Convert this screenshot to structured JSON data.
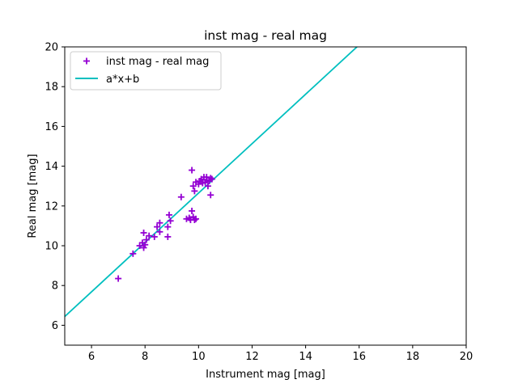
{
  "chart_data": {
    "type": "scatter",
    "title": "inst mag - real mag",
    "xlabel": "Instrument mag [mag]",
    "ylabel": "Real mag [mag]",
    "xlim": [
      5,
      20
    ],
    "ylim": [
      5,
      20
    ],
    "xticks": [
      6,
      8,
      10,
      12,
      14,
      16,
      18,
      20
    ],
    "yticks": [
      6,
      8,
      10,
      12,
      14,
      16,
      18,
      20
    ],
    "grid": false,
    "legend_position": "top-left",
    "series": [
      {
        "name": "inst mag - real mag",
        "kind": "scatter",
        "marker": "plus",
        "color": "#9400d3",
        "points": [
          [
            7.0,
            8.35
          ],
          [
            7.55,
            9.6
          ],
          [
            7.8,
            10.0
          ],
          [
            7.9,
            10.15
          ],
          [
            7.95,
            9.9
          ],
          [
            8.0,
            10.05
          ],
          [
            7.95,
            10.65
          ],
          [
            8.05,
            10.3
          ],
          [
            8.15,
            10.5
          ],
          [
            8.35,
            10.45
          ],
          [
            8.45,
            10.95
          ],
          [
            8.55,
            10.7
          ],
          [
            8.55,
            11.15
          ],
          [
            8.85,
            10.45
          ],
          [
            8.85,
            10.95
          ],
          [
            8.95,
            11.25
          ],
          [
            8.9,
            11.55
          ],
          [
            9.35,
            12.45
          ],
          [
            9.55,
            11.35
          ],
          [
            9.65,
            11.4
          ],
          [
            9.7,
            11.3
          ],
          [
            9.75,
            11.75
          ],
          [
            9.8,
            11.45
          ],
          [
            9.85,
            11.3
          ],
          [
            9.9,
            11.35
          ],
          [
            9.75,
            13.8
          ],
          [
            9.8,
            13.0
          ],
          [
            9.85,
            12.75
          ],
          [
            9.9,
            13.2
          ],
          [
            10.0,
            13.1
          ],
          [
            10.05,
            13.25
          ],
          [
            10.1,
            13.35
          ],
          [
            10.15,
            13.15
          ],
          [
            10.2,
            13.45
          ],
          [
            10.25,
            13.2
          ],
          [
            10.3,
            13.3
          ],
          [
            10.35,
            13.0
          ],
          [
            10.4,
            13.25
          ],
          [
            10.45,
            12.55
          ],
          [
            10.45,
            13.4
          ],
          [
            10.5,
            13.35
          ],
          [
            10.3,
            13.45
          ]
        ]
      },
      {
        "name": "a*x+b",
        "kind": "line",
        "color": "#00bfbf",
        "slope": 1.242,
        "intercept": 0.23
      }
    ]
  }
}
